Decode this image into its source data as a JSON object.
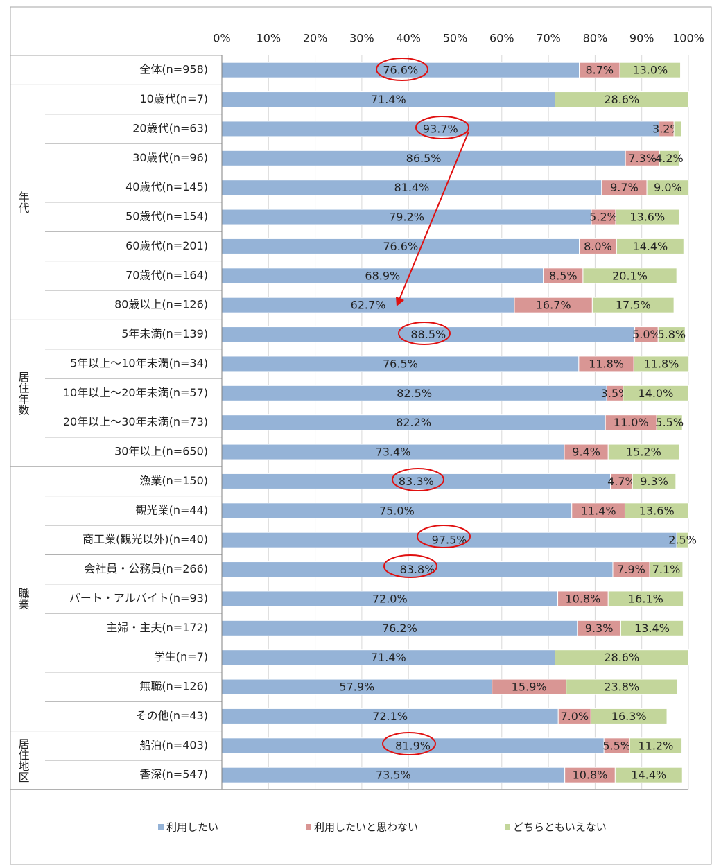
{
  "chart_data": {
    "type": "bar",
    "orientation": "horizontal",
    "stacked": true,
    "categories": [
      "全体(n=958)",
      "10歳代(n=7)",
      "20歳代(n=63)",
      "30歳代(n=96)",
      "40歳代(n=145)",
      "50歳代(n=154)",
      "60歳代(n=201)",
      "70歳代(n=164)",
      "80歳以上(n=126)",
      "5年未満(n=139)",
      "5年以上～10年未満(n=34)",
      "10年以上～20年未満(n=57)",
      "20年以上～30年未満(n=73)",
      "30年以上(n=650)",
      "漁業(n=150)",
      "観光業(n=44)",
      "商工業(観光以外)(n=40)",
      "会社員・公務員(n=266)",
      "パート・アルバイト(n=93)",
      "主婦・主夫(n=172)",
      "学生(n=7)",
      "無職(n=126)",
      "その他(n=43)",
      "船泊(n=403)",
      "香深(n=547)"
    ],
    "groups": [
      {
        "label": "年代",
        "first": 1,
        "last": 8
      },
      {
        "label": "居住年数",
        "first": 9,
        "last": 13
      },
      {
        "label": "職業",
        "first": 14,
        "last": 22
      },
      {
        "label": "居住地区",
        "first": 23,
        "last": 24
      }
    ],
    "series": [
      {
        "name": "利用したい",
        "color": "#95b3d7",
        "values": [
          76.6,
          71.4,
          93.7,
          86.5,
          81.4,
          79.2,
          76.6,
          68.9,
          62.7,
          88.5,
          76.5,
          82.5,
          82.2,
          73.4,
          83.3,
          75.0,
          97.5,
          83.8,
          72.0,
          76.2,
          71.4,
          57.9,
          72.1,
          81.9,
          73.5
        ],
        "value_labels": [
          "76.6%",
          "71.4%",
          "93.7%",
          "86.5%",
          "81.4%",
          "79.2%",
          "76.6%",
          "68.9%",
          "62.7%",
          "88.5%",
          "76.5%",
          "82.5%",
          "82.2%",
          "73.4%",
          "83.3%",
          "75.0%",
          "97.5%",
          "83.8%",
          "72.0%",
          "76.2%",
          "71.4%",
          "57.9%",
          "72.1%",
          "81.9%",
          "73.5%"
        ]
      },
      {
        "name": "利用したいと思わない",
        "color": "#d99694",
        "values": [
          8.7,
          null,
          3.2,
          7.3,
          9.7,
          5.2,
          8.0,
          8.5,
          16.7,
          5.0,
          11.8,
          3.5,
          11.0,
          9.4,
          4.7,
          11.4,
          null,
          7.9,
          10.8,
          9.3,
          null,
          15.9,
          7.0,
          5.5,
          10.8
        ],
        "value_labels": [
          "8.7%",
          null,
          "3.2%",
          "7.3%",
          "9.7%",
          "5.2%",
          "8.0%",
          "8.5%",
          "16.7%",
          "5.0%",
          "11.8%",
          "3.5%",
          "11.0%",
          "9.4%",
          "4.7%",
          "11.4%",
          null,
          "7.9%",
          "10.8%",
          "9.3%",
          null,
          "15.9%",
          "7.0%",
          "5.5%",
          "10.8%"
        ]
      },
      {
        "name": "どちらともいえない",
        "color": "#c3d69b",
        "values": [
          13.0,
          28.6,
          1.6,
          4.2,
          9.0,
          13.6,
          14.4,
          20.1,
          17.5,
          5.8,
          11.8,
          14.0,
          5.5,
          15.2,
          9.3,
          13.6,
          2.5,
          7.1,
          16.1,
          13.4,
          28.6,
          23.8,
          16.3,
          11.2,
          14.4
        ],
        "value_labels": [
          "13.0%",
          "28.6%",
          null,
          "4.2%",
          "9.0%",
          "13.6%",
          "14.4%",
          "20.1%",
          "17.5%",
          "5.8%",
          "11.8%",
          "14.0%",
          "5.5%",
          "15.2%",
          "9.3%",
          "13.6%",
          "2.5%",
          "7.1%",
          "16.1%",
          "13.4%",
          "28.6%",
          "23.8%",
          "16.3%",
          "11.2%",
          "14.4%"
        ]
      }
    ],
    "xlim": [
      0,
      100
    ],
    "xticks": [
      {
        "value": 0,
        "label": "0%"
      },
      {
        "value": 10,
        "label": "10%"
      },
      {
        "value": 20,
        "label": "20%"
      },
      {
        "value": 30,
        "label": "30%"
      },
      {
        "value": 40,
        "label": "40%"
      },
      {
        "value": 50,
        "label": "50%"
      },
      {
        "value": 60,
        "label": "60%"
      },
      {
        "value": 70,
        "label": "70%"
      },
      {
        "value": 80,
        "label": "80%"
      },
      {
        "value": 90,
        "label": "90%"
      },
      {
        "value": 100,
        "label": "100%"
      }
    ],
    "grid": true,
    "legend": "bottom"
  }
}
